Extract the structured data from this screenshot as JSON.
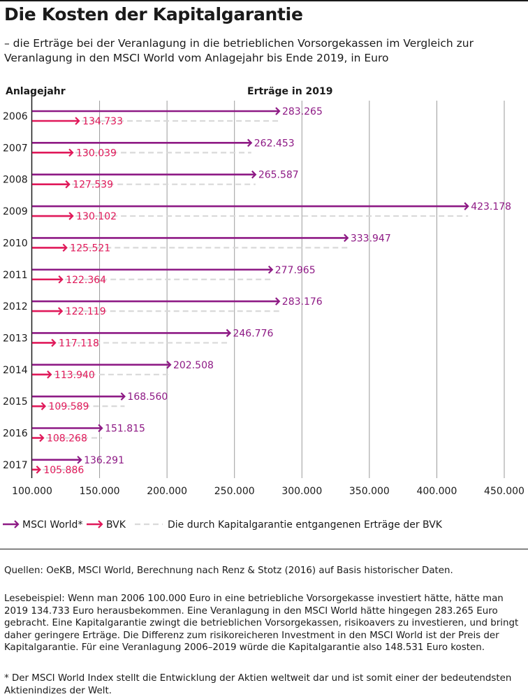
{
  "header": {
    "title": "Die Kosten der Kapitalgarantie",
    "subtitle": "– die Erträge bei der Veranlagung in die betrieblichen Vorsorgekassen im Vergleich zur Veranlagung in den MSCI World vom Anlagejahr bis Ende 2019, in Euro"
  },
  "chart_data": {
    "type": "bar",
    "orientation": "horizontal",
    "ylabel": "Anlagejahr",
    "value_label": "Erträge in 2019",
    "categories": [
      "2006",
      "2007",
      "2008",
      "2009",
      "2010",
      "2011",
      "2012",
      "2013",
      "2014",
      "2015",
      "2016",
      "2017"
    ],
    "series": [
      {
        "name": "MSCI World*",
        "color": "#8e1a85",
        "values": [
          283265,
          262453,
          265587,
          423178,
          333947,
          277965,
          283176,
          246776,
          202508,
          168560,
          151815,
          136291
        ],
        "labels": [
          "283.265",
          "262.453",
          "265.587",
          "423.178",
          "333.947",
          "277.965",
          "283.176",
          "246.776",
          "202.508",
          "168.560",
          "151.815",
          "136.291"
        ]
      },
      {
        "name": "BVK",
        "color": "#e0195a",
        "values": [
          134733,
          130039,
          127539,
          130102,
          125521,
          122364,
          122119,
          117118,
          113940,
          109589,
          108268,
          105886
        ],
        "labels": [
          "134.733",
          "130.039",
          "127.539",
          "130.102",
          "125.521",
          "122.364",
          "122.119",
          "117.118",
          "113.940",
          "109.589",
          "108.268",
          "105.886"
        ]
      }
    ],
    "gap_series_name": "Die durch Kapitalgarantie entgangenen Erträge der BVK",
    "gap_color": "#d9d9d9",
    "xlim": [
      100000,
      450000
    ],
    "xticks": [
      100000,
      150000,
      200000,
      250000,
      300000,
      350000,
      400000,
      450000
    ],
    "xtick_labels": [
      "100.000",
      "150.000",
      "200.000",
      "250.000",
      "300.000",
      "350.000",
      "400.000",
      "450.000"
    ],
    "grid": true,
    "legend_position": "bottom"
  },
  "footer": {
    "sources": "Quellen: OeKB, MSCI World, Berechnung nach Renz & Stotz (2016) auf Basis historischer Daten.",
    "example": "Lesebeispiel: Wenn man 2006 100.000 Euro in eine betriebliche Vorsorgekasse investiert hätte, hätte man 2019 134.733 Euro herausbekommen. Eine Veranlagung in den MSCI World hätte hingegen 283.265 Euro gebracht. Eine Kapitalgarantie zwingt die betrieblichen Vorsorgekassen, risikoavers zu investieren, und bringt daher geringere Erträge. Die Differenz zum risikoreicheren Investment in den MSCI World ist der Preis der Kapitalgarantie. Für eine Veranlagung 2006–2019 würde die Kapitalgarantie also 148.531 Euro kosten.",
    "note": "* Der MSCI World Index stellt die Entwicklung der Aktien weltweit dar und ist somit einer der bedeutendsten Aktienindizes der Welt."
  }
}
